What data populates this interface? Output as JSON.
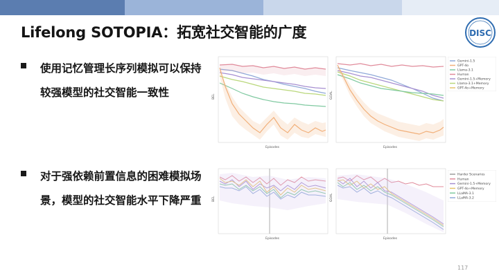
{
  "slide": {
    "title": "Lifelong SOTOPIA：拓宽社交智能的广度",
    "page_number": "117",
    "colors": {
      "title_text": "#141414",
      "top_band": [
        "#5b7db0",
        "#9bb4d9",
        "#c9d7eb",
        "#e6edf6"
      ],
      "logo_blue": "#2d6bb0"
    }
  },
  "bullets": [
    {
      "icon": "square-bullet",
      "text": "使用记忆管理长序列模拟可以保持较强模型的社交智能一致性"
    },
    {
      "icon": "square-bullet",
      "text": "对于强依赖前置信息的困难模拟场景，模型的社交智能水平下降严重"
    }
  ],
  "logo": {
    "text": "DISC"
  },
  "charts": {
    "top_left": {
      "ylabel": "BEL",
      "xlabel": "Episodes"
    },
    "top_right": {
      "ylabel": "GOAL",
      "xlabel": "Episodes"
    },
    "bottom_left": {
      "ylabel": "BEL",
      "xlabel": "Episodes"
    },
    "bottom_right": {
      "ylabel": "GOAL",
      "xlabel": "Episodes"
    }
  },
  "legend_top": [
    {
      "name": "Gemini-1.5",
      "color": "#8fa8d8"
    },
    {
      "name": "GPT-4o",
      "color": "#f2b07a"
    },
    {
      "name": "Llama-3.1",
      "color": "#7fc9a0"
    },
    {
      "name": "Human",
      "color": "#e08a9a"
    },
    {
      "name": "Gemini-1.5+Memory",
      "color": "#a68fd1"
    },
    {
      "name": "Llama-3.1+Memory",
      "color": "#b9d77a"
    },
    {
      "name": "GPT-4o+Memory",
      "color": "#e6c36a"
    }
  ],
  "legend_bottom": [
    {
      "name": "Harder Scenarios",
      "color": "#9a9a9a"
    },
    {
      "name": "Human",
      "color": "#e08a9a"
    },
    {
      "name": "Gemini-1.5+Memory",
      "color": "#a68fd1"
    },
    {
      "name": "GPT-4o+Memory",
      "color": "#e6c36a"
    },
    {
      "name": "LLaMA-3.1",
      "color": "#7fc9a0"
    },
    {
      "name": "LLaMA-3.2",
      "color": "#8fa8d8"
    }
  ]
}
